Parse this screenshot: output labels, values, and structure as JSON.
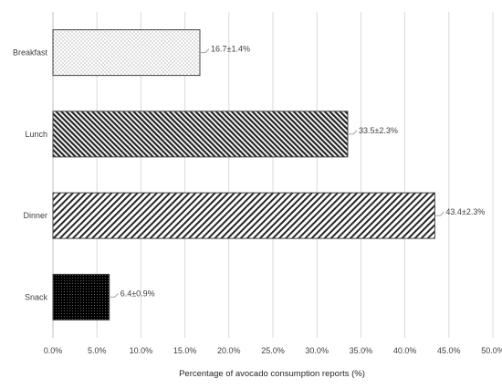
{
  "chart_data": {
    "type": "bar",
    "orientation": "horizontal",
    "title": "",
    "xlabel": "Percentage of avocado consumption reports (%)",
    "ylabel": "",
    "xlim": [
      0,
      50
    ],
    "x_ticks": [
      0,
      5,
      10,
      15,
      20,
      25,
      30,
      35,
      40,
      45,
      50
    ],
    "x_tick_labels": [
      "0.0%",
      "5.0%",
      "10.0%",
      "15.0%",
      "20.0%",
      "25.0%",
      "30.0%",
      "35.0%",
      "40.0%",
      "45.0%",
      "50.0%"
    ],
    "grid": "vertical",
    "legend": "none",
    "categories": [
      "Breakfast",
      "Lunch",
      "Dinner",
      "Snack"
    ],
    "values": [
      16.7,
      33.5,
      43.4,
      6.4
    ],
    "errors": [
      1.4,
      2.3,
      2.3,
      0.9
    ],
    "data_labels": [
      "16.7±1.4%",
      "33.5±2.3%",
      "43.4±2.3%",
      "6.4±0.9%"
    ],
    "fill_patterns": [
      "light-dots",
      "fine-diagonal-hatch",
      "wide-diagonal-hatch",
      "dense-black-dots"
    ],
    "colors": {
      "bar_edge": "#404040",
      "grid": "#d9d9d9",
      "leader": "#a6a6a6",
      "text": "#404040"
    }
  }
}
